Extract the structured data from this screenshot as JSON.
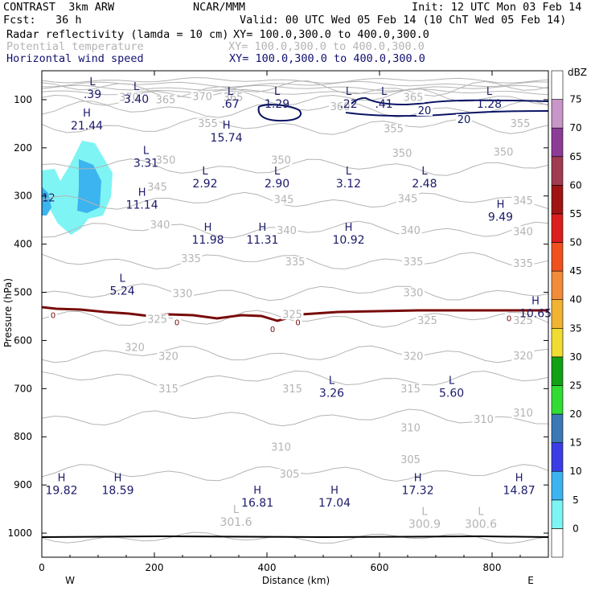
{
  "header": {
    "title": "CONTRAST  3km ARW",
    "institution": "NCAR/MMM",
    "init": "Init: 12 UTC Mon 03 Feb 14",
    "fcst": "Fcst:   36 h",
    "valid": "Valid: 00 UTC Wed 05 Feb 14 (10 ChT Wed 05 Feb 14)"
  },
  "fields": [
    {
      "label": "Radar reflectivity (lamda = 10 cm)",
      "xy": "XY= 100.0,300.0 to 400.0,300.0",
      "style": "black"
    },
    {
      "label": "Potential temperature",
      "xy": "XY= 100.0,300.0 to 400.0,300.0",
      "style": "gray"
    },
    {
      "label": "Horizontal wind speed",
      "xy": "XY= 100.0,300.0 to 400.0,300.0",
      "style": "navy"
    }
  ],
  "chart_data": {
    "type": "cross-section contour",
    "xlabel": "Distance (km)",
    "ylabel": "Pressure (hPa)",
    "xlim": [
      0,
      900
    ],
    "ylim": [
      1050,
      40
    ],
    "x_ticks": [
      "0",
      "200",
      "400",
      "600",
      "800"
    ],
    "x_tick_values": [
      0,
      200,
      400,
      600,
      800
    ],
    "y_ticks": [
      "100",
      "200",
      "300",
      "400",
      "500",
      "600",
      "700",
      "800",
      "900",
      "1000"
    ],
    "y_tick_values": [
      100,
      200,
      300,
      400,
      500,
      600,
      700,
      800,
      900,
      1000
    ],
    "west_label": "W",
    "east_label": "E",
    "theta_isentropes": [
      {
        "label": "300.6",
        "x": 870,
        "p": 1010
      },
      {
        "label": "305",
        "x": 430,
        "p": 875
      },
      {
        "label": "310",
        "x": 430,
        "p": 760
      },
      {
        "label": "315",
        "x": 430,
        "p": 680
      },
      {
        "label": "320",
        "x": 430,
        "p": 628
      },
      {
        "label": "325",
        "x": 430,
        "p": 555
      },
      {
        "label": "330",
        "x": 430,
        "p": 500
      },
      {
        "label": "335",
        "x": 430,
        "p": 435
      },
      {
        "label": "340",
        "x": 430,
        "p": 370
      },
      {
        "label": "345",
        "x": 430,
        "p": 310
      },
      {
        "label": "350",
        "x": 430,
        "p": 240
      },
      {
        "label": "355",
        "x": 430,
        "p": 155
      },
      {
        "label": "360",
        "x": 430,
        "p": 120
      },
      {
        "label": "365",
        "x": 430,
        "p": 95
      },
      {
        "label": "370",
        "x": 430,
        "p": 78
      }
    ],
    "theta_labels": [
      {
        "text": "370",
        "x": 155,
        "p": 98
      },
      {
        "text": "365",
        "x": 220,
        "p": 103
      },
      {
        "text": "370",
        "x": 285,
        "p": 96
      },
      {
        "text": "365",
        "x": 340,
        "p": 98
      },
      {
        "text": "365",
        "x": 660,
        "p": 98
      },
      {
        "text": "360",
        "x": 530,
        "p": 117
      },
      {
        "text": "355",
        "x": 295,
        "p": 152
      },
      {
        "text": "355",
        "x": 625,
        "p": 163
      },
      {
        "text": "355",
        "x": 850,
        "p": 152
      },
      {
        "text": "350",
        "x": 220,
        "p": 228
      },
      {
        "text": "350",
        "x": 425,
        "p": 228
      },
      {
        "text": "350",
        "x": 640,
        "p": 214
      },
      {
        "text": "350",
        "x": 820,
        "p": 211
      },
      {
        "text": "345",
        "x": 205,
        "p": 284
      },
      {
        "text": "345",
        "x": 430,
        "p": 310
      },
      {
        "text": "345",
        "x": 650,
        "p": 308
      },
      {
        "text": "345",
        "x": 855,
        "p": 312
      },
      {
        "text": "340",
        "x": 210,
        "p": 362
      },
      {
        "text": "340",
        "x": 435,
        "p": 374
      },
      {
        "text": "340",
        "x": 655,
        "p": 374
      },
      {
        "text": "340",
        "x": 855,
        "p": 376
      },
      {
        "text": "335",
        "x": 265,
        "p": 432
      },
      {
        "text": "335",
        "x": 450,
        "p": 439
      },
      {
        "text": "335",
        "x": 660,
        "p": 439
      },
      {
        "text": "335",
        "x": 855,
        "p": 442
      },
      {
        "text": "330",
        "x": 250,
        "p": 505
      },
      {
        "text": "330",
        "x": 660,
        "p": 503
      },
      {
        "text": "325",
        "x": 205,
        "p": 558
      },
      {
        "text": "325",
        "x": 445,
        "p": 548
      },
      {
        "text": "325",
        "x": 685,
        "p": 561
      },
      {
        "text": "325",
        "x": 855,
        "p": 561
      },
      {
        "text": "320",
        "x": 165,
        "p": 617
      },
      {
        "text": "320",
        "x": 225,
        "p": 635
      },
      {
        "text": "320",
        "x": 660,
        "p": 635
      },
      {
        "text": "320",
        "x": 855,
        "p": 634
      },
      {
        "text": "315",
        "x": 225,
        "p": 703
      },
      {
        "text": "315",
        "x": 445,
        "p": 703
      },
      {
        "text": "315",
        "x": 655,
        "p": 703
      },
      {
        "text": "310",
        "x": 425,
        "p": 824
      },
      {
        "text": "310",
        "x": 655,
        "p": 784
      },
      {
        "text": "310",
        "x": 785,
        "p": 766
      },
      {
        "text": "310",
        "x": 855,
        "p": 753
      },
      {
        "text": "305",
        "x": 440,
        "p": 880
      },
      {
        "text": "305",
        "x": 655,
        "p": 850
      }
    ],
    "wind_20_label": "20",
    "wind_20_labels": [
      {
        "x": 680,
        "p": 127
      },
      {
        "x": 750,
        "p": 145
      }
    ],
    "zero_label": "0",
    "zero_line_labels": [
      {
        "x": 20,
        "p": 547
      },
      {
        "x": 240,
        "p": 562
      },
      {
        "x": 410,
        "p": 576
      },
      {
        "x": 455,
        "p": 562
      },
      {
        "x": 830,
        "p": 553
      }
    ],
    "extrema": [
      {
        "type": "L",
        "value": ".39",
        "x": 90,
        "p": 70
      },
      {
        "type": "L",
        "value": "3.40",
        "x": 168,
        "p": 80
      },
      {
        "type": "L",
        "value": ".67",
        "x": 335,
        "p": 90
      },
      {
        "type": "L",
        "value": "1.29",
        "x": 418,
        "p": 90
      },
      {
        "type": "L",
        "value": ".22",
        "x": 545,
        "p": 90
      },
      {
        "type": "L",
        "value": ".41",
        "x": 608,
        "p": 90
      },
      {
        "type": "L",
        "value": "1.28",
        "x": 795,
        "p": 90
      },
      {
        "type": "H",
        "value": "21.44",
        "x": 80,
        "p": 135
      },
      {
        "type": "H",
        "value": "15.74",
        "x": 328,
        "p": 160
      },
      {
        "type": "L",
        "value": "3.31",
        "x": 185,
        "p": 213
      },
      {
        "type": "L",
        "value": "2.92",
        "x": 290,
        "p": 255
      },
      {
        "type": "L",
        "value": "2.90",
        "x": 418,
        "p": 255
      },
      {
        "type": "L",
        "value": "3.12",
        "x": 545,
        "p": 255
      },
      {
        "type": "L",
        "value": "2.48",
        "x": 680,
        "p": 255
      },
      {
        "type": "H",
        "value": "11.14",
        "x": 178,
        "p": 300
      },
      {
        "type": "H",
        "value": "9.49",
        "x": 815,
        "p": 325
      },
      {
        "type": "H",
        "value": "11.98",
        "x": 295,
        "p": 372
      },
      {
        "type": "H",
        "value": "11.31",
        "x": 392,
        "p": 372
      },
      {
        "type": "H",
        "value": "10.92",
        "x": 545,
        "p": 372
      },
      {
        "type": "L",
        "value": "5.24",
        "x": 143,
        "p": 478
      },
      {
        "type": "H",
        "value": "10.65",
        "x": 878,
        "p": 525
      },
      {
        "type": "L",
        "value": "3.26",
        "x": 515,
        "p": 690
      },
      {
        "type": "L",
        "value": "5.60",
        "x": 728,
        "p": 690
      },
      {
        "type": "H",
        "value": "19.82",
        "x": 35,
        "p": 892
      },
      {
        "type": "H",
        "value": "18.59",
        "x": 135,
        "p": 892
      },
      {
        "type": "H",
        "value": "16.81",
        "x": 383,
        "p": 918
      },
      {
        "type": "H",
        "value": "17.04",
        "x": 520,
        "p": 918
      },
      {
        "type": "H",
        "value": "17.32",
        "x": 668,
        "p": 892
      },
      {
        "type": "H",
        "value": "14.87",
        "x": 848,
        "p": 892
      }
    ],
    "theta_extrema": [
      {
        "type": "L",
        "value": "301.6",
        "x": 345,
        "p": 958
      },
      {
        "type": "L",
        "value": "300.9",
        "x": 680,
        "p": 962
      },
      {
        "type": "L",
        "value": "300.6",
        "x": 780,
        "p": 962
      }
    ],
    "reflectivity_label": "12",
    "reflectivity_label_pos": {
      "x": 12,
      "p": 305
    },
    "colorbar": {
      "unit": "dBZ",
      "levels": [
        "0",
        "5",
        "10",
        "15",
        "20",
        "25",
        "30",
        "35",
        "40",
        "45",
        "50",
        "55",
        "60",
        "65",
        "70",
        "75"
      ],
      "colors": [
        "#ffffff",
        "#7ff4f4",
        "#3cb4f0",
        "#3c3ce6",
        "#3c78b4",
        "#32dc32",
        "#14a014",
        "#f0dc32",
        "#f0b432",
        "#f08c3c",
        "#f0501e",
        "#dc1e1e",
        "#a01414",
        "#a03c50",
        "#8c3c96",
        "#c896c8",
        "#ffffff"
      ]
    },
    "colors": {
      "theta": "#b4b4b4",
      "wind": "#0a1464",
      "zero_isotherm": "#780a0a",
      "ground": "#000000",
      "refl_10": "#7ff4f4",
      "refl_15": "#3cb4f0",
      "label": "#1a1a6a"
    }
  }
}
